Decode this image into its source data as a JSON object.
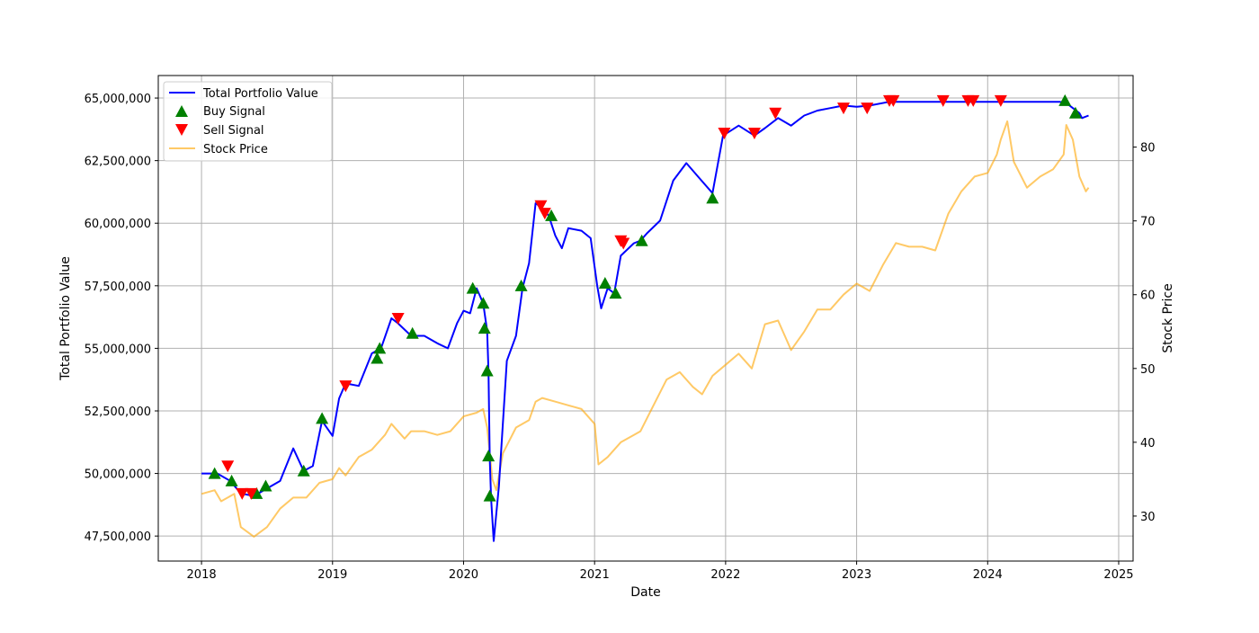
{
  "chart_data": {
    "type": "line",
    "xlabel": "Date",
    "ylabel_left": "Total Portfolio Value",
    "ylabel_right": "Stock Price",
    "x_ticks": [
      "2018",
      "2019",
      "2020",
      "2021",
      "2022",
      "2023",
      "2024",
      "2025"
    ],
    "y_left_ticks": [
      "47,500,000",
      "50,000,000",
      "52,500,000",
      "55,000,000",
      "57,500,000",
      "60,000,000",
      "62,500,000",
      "65,000,000"
    ],
    "y_right_ticks": [
      "30",
      "40",
      "50",
      "60",
      "70",
      "80"
    ],
    "xlim": [
      2017.67,
      2025.11
    ],
    "ylim_left": [
      46500000,
      65900000
    ],
    "ylim_right": [
      23.9,
      89.7
    ],
    "grid": true,
    "legend_position": "upper-left",
    "legend": {
      "portfolio": "Total Portfolio Value",
      "buy": "Buy Signal",
      "sell": "Sell Signal",
      "price": "Stock Price"
    },
    "colors": {
      "portfolio": "#0000ff",
      "buy": "#008000",
      "sell": "#ff0000",
      "price": "#ffa500"
    },
    "series": [
      {
        "name": "Total Portfolio Value",
        "axis": "left",
        "points": [
          [
            2018.0,
            50000000
          ],
          [
            2018.12,
            50000000
          ],
          [
            2018.22,
            49700000
          ],
          [
            2018.3,
            49200000
          ],
          [
            2018.4,
            49100000
          ],
          [
            2018.5,
            49400000
          ],
          [
            2018.6,
            49700000
          ],
          [
            2018.7,
            51000000
          ],
          [
            2018.78,
            50100000
          ],
          [
            2018.85,
            50300000
          ],
          [
            2018.92,
            52100000
          ],
          [
            2019.0,
            51500000
          ],
          [
            2019.05,
            53000000
          ],
          [
            2019.1,
            53600000
          ],
          [
            2019.2,
            53500000
          ],
          [
            2019.3,
            54800000
          ],
          [
            2019.37,
            55000000
          ],
          [
            2019.45,
            56200000
          ],
          [
            2019.5,
            56000000
          ],
          [
            2019.6,
            55500000
          ],
          [
            2019.7,
            55500000
          ],
          [
            2019.8,
            55200000
          ],
          [
            2019.88,
            55000000
          ],
          [
            2019.95,
            56000000
          ],
          [
            2020.0,
            56500000
          ],
          [
            2020.05,
            56400000
          ],
          [
            2020.1,
            57400000
          ],
          [
            2020.15,
            56800000
          ],
          [
            2020.18,
            55700000
          ],
          [
            2020.19,
            54100000
          ],
          [
            2020.2,
            50600000
          ],
          [
            2020.21,
            49000000
          ],
          [
            2020.23,
            47300000
          ],
          [
            2020.27,
            49500000
          ],
          [
            2020.33,
            54500000
          ],
          [
            2020.4,
            55500000
          ],
          [
            2020.45,
            57400000
          ],
          [
            2020.5,
            58400000
          ],
          [
            2020.55,
            60800000
          ],
          [
            2020.6,
            60600000
          ],
          [
            2020.65,
            60300000
          ],
          [
            2020.7,
            59500000
          ],
          [
            2020.75,
            59000000
          ],
          [
            2020.8,
            59800000
          ],
          [
            2020.9,
            59700000
          ],
          [
            2020.97,
            59400000
          ],
          [
            2021.02,
            57500000
          ],
          [
            2021.05,
            56600000
          ],
          [
            2021.1,
            57400000
          ],
          [
            2021.15,
            57200000
          ],
          [
            2021.2,
            58700000
          ],
          [
            2021.3,
            59200000
          ],
          [
            2021.35,
            59300000
          ],
          [
            2021.4,
            59600000
          ],
          [
            2021.5,
            60100000
          ],
          [
            2021.6,
            61700000
          ],
          [
            2021.7,
            62400000
          ],
          [
            2021.8,
            61800000
          ],
          [
            2021.9,
            61200000
          ],
          [
            2021.98,
            63500000
          ],
          [
            2022.1,
            63900000
          ],
          [
            2022.22,
            63500000
          ],
          [
            2022.3,
            63800000
          ],
          [
            2022.4,
            64200000
          ],
          [
            2022.5,
            63900000
          ],
          [
            2022.6,
            64300000
          ],
          [
            2022.7,
            64500000
          ],
          [
            2022.8,
            64600000
          ],
          [
            2022.9,
            64700000
          ],
          [
            2023.0,
            64650000
          ],
          [
            2023.1,
            64700000
          ],
          [
            2023.25,
            64850000
          ],
          [
            2023.5,
            64850000
          ],
          [
            2023.8,
            64850000
          ],
          [
            2024.0,
            64850000
          ],
          [
            2024.3,
            64850000
          ],
          [
            2024.55,
            64850000
          ],
          [
            2024.6,
            64800000
          ],
          [
            2024.65,
            64600000
          ],
          [
            2024.7,
            64400000
          ],
          [
            2024.72,
            64200000
          ],
          [
            2024.77,
            64300000
          ]
        ]
      },
      {
        "name": "Stock Price",
        "axis": "right",
        "points": [
          [
            2018.0,
            33
          ],
          [
            2018.1,
            33.5
          ],
          [
            2018.15,
            32
          ],
          [
            2018.25,
            33
          ],
          [
            2018.3,
            28.5
          ],
          [
            2018.4,
            27.2
          ],
          [
            2018.5,
            28.5
          ],
          [
            2018.6,
            31
          ],
          [
            2018.7,
            32.5
          ],
          [
            2018.8,
            32.5
          ],
          [
            2018.9,
            34.5
          ],
          [
            2019.0,
            35
          ],
          [
            2019.05,
            36.5
          ],
          [
            2019.1,
            35.5
          ],
          [
            2019.2,
            38
          ],
          [
            2019.3,
            39
          ],
          [
            2019.4,
            41
          ],
          [
            2019.45,
            42.5
          ],
          [
            2019.55,
            40.5
          ],
          [
            2019.6,
            41.5
          ],
          [
            2019.7,
            41.5
          ],
          [
            2019.8,
            41
          ],
          [
            2019.9,
            41.5
          ],
          [
            2020.0,
            43.5
          ],
          [
            2020.1,
            44
          ],
          [
            2020.15,
            44.5
          ],
          [
            2020.18,
            42
          ],
          [
            2020.22,
            35
          ],
          [
            2020.25,
            33.5
          ],
          [
            2020.3,
            38.5
          ],
          [
            2020.4,
            42
          ],
          [
            2020.5,
            43
          ],
          [
            2020.55,
            45.5
          ],
          [
            2020.6,
            46
          ],
          [
            2020.7,
            45.5
          ],
          [
            2020.8,
            45
          ],
          [
            2020.9,
            44.5
          ],
          [
            2021.0,
            42.5
          ],
          [
            2021.03,
            37
          ],
          [
            2021.1,
            38
          ],
          [
            2021.2,
            40
          ],
          [
            2021.3,
            41
          ],
          [
            2021.35,
            41.5
          ],
          [
            2021.45,
            45
          ],
          [
            2021.55,
            48.5
          ],
          [
            2021.65,
            49.5
          ],
          [
            2021.75,
            47.5
          ],
          [
            2021.82,
            46.5
          ],
          [
            2021.9,
            49
          ],
          [
            2022.0,
            50.5
          ],
          [
            2022.1,
            52
          ],
          [
            2022.2,
            50
          ],
          [
            2022.3,
            56
          ],
          [
            2022.4,
            56.5
          ],
          [
            2022.5,
            52.5
          ],
          [
            2022.6,
            55
          ],
          [
            2022.7,
            58
          ],
          [
            2022.8,
            58
          ],
          [
            2022.9,
            60
          ],
          [
            2023.0,
            61.5
          ],
          [
            2023.1,
            60.5
          ],
          [
            2023.2,
            64
          ],
          [
            2023.3,
            67
          ],
          [
            2023.4,
            66.5
          ],
          [
            2023.5,
            66.5
          ],
          [
            2023.6,
            66
          ],
          [
            2023.7,
            71
          ],
          [
            2023.8,
            74
          ],
          [
            2023.9,
            76
          ],
          [
            2024.0,
            76.5
          ],
          [
            2024.07,
            79
          ],
          [
            2024.1,
            81
          ],
          [
            2024.15,
            83.5
          ],
          [
            2024.2,
            78
          ],
          [
            2024.3,
            74.5
          ],
          [
            2024.4,
            76
          ],
          [
            2024.5,
            77
          ],
          [
            2024.58,
            79
          ],
          [
            2024.6,
            83
          ],
          [
            2024.65,
            81
          ],
          [
            2024.7,
            76
          ],
          [
            2024.75,
            74
          ],
          [
            2024.77,
            74.5
          ]
        ]
      }
    ],
    "buy_signals": [
      [
        2018.1,
        50000000
      ],
      [
        2018.23,
        49700000
      ],
      [
        2018.42,
        49200000
      ],
      [
        2018.49,
        49500000
      ],
      [
        2018.78,
        50100000
      ],
      [
        2018.92,
        52200000
      ],
      [
        2019.34,
        54600000
      ],
      [
        2019.36,
        55000000
      ],
      [
        2019.61,
        55600000
      ],
      [
        2020.07,
        57400000
      ],
      [
        2020.15,
        56800000
      ],
      [
        2020.16,
        55800000
      ],
      [
        2020.18,
        54100000
      ],
      [
        2020.19,
        50700000
      ],
      [
        2020.2,
        49100000
      ],
      [
        2020.44,
        57500000
      ],
      [
        2020.67,
        60300000
      ],
      [
        2021.08,
        57600000
      ],
      [
        2021.16,
        57200000
      ],
      [
        2021.36,
        59300000
      ],
      [
        2021.9,
        61000000
      ],
      [
        2024.59,
        64900000
      ],
      [
        2024.67,
        64400000
      ]
    ],
    "sell_signals": [
      [
        2018.2,
        50300000
      ],
      [
        2018.31,
        49200000
      ],
      [
        2018.38,
        49200000
      ],
      [
        2019.1,
        53500000
      ],
      [
        2019.5,
        56200000
      ],
      [
        2020.59,
        60700000
      ],
      [
        2020.62,
        60400000
      ],
      [
        2021.2,
        59300000
      ],
      [
        2021.22,
        59200000
      ],
      [
        2021.99,
        63600000
      ],
      [
        2022.22,
        63600000
      ],
      [
        2022.38,
        64400000
      ],
      [
        2022.9,
        64600000
      ],
      [
        2023.08,
        64600000
      ],
      [
        2023.25,
        64900000
      ],
      [
        2023.28,
        64900000
      ],
      [
        2023.66,
        64900000
      ],
      [
        2023.85,
        64900000
      ],
      [
        2023.89,
        64900000
      ],
      [
        2024.1,
        64900000
      ]
    ]
  }
}
